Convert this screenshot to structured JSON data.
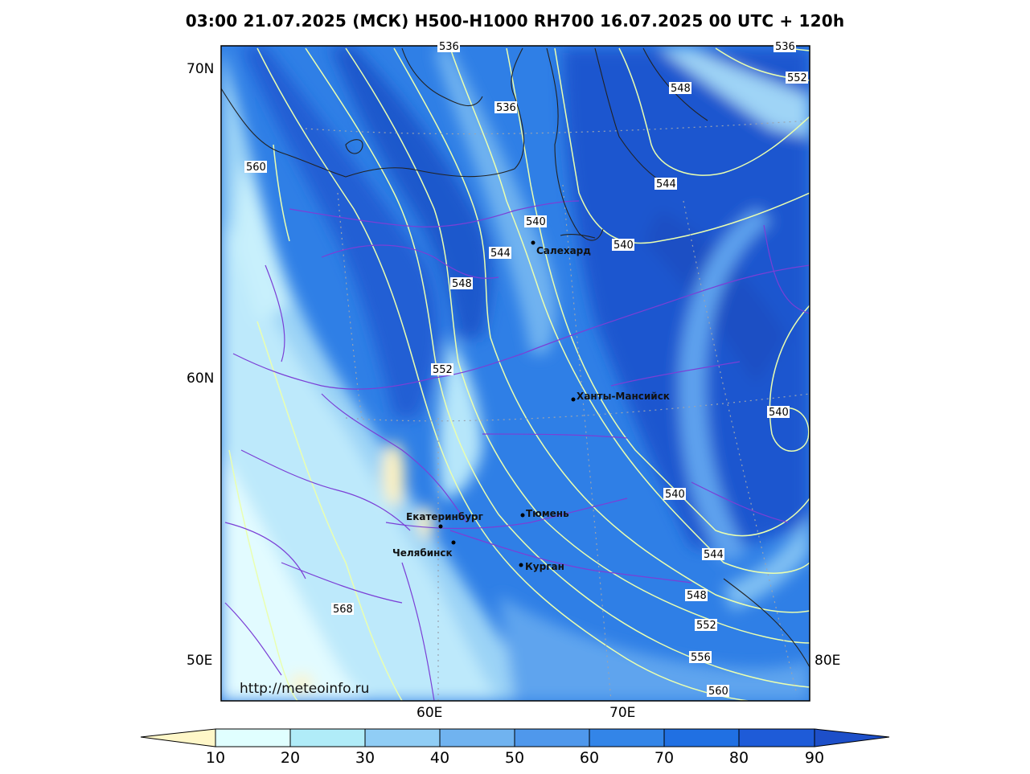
{
  "header": {
    "title": "03:00 21.07.2025 (МСК) H500-H1000 RH700 16.07.2025 00 UTC + 120h"
  },
  "axes": {
    "lat_labels": [
      "70N",
      "60N",
      "50E"
    ],
    "lon_labels": [
      "60E",
      "70E",
      "80E"
    ]
  },
  "contour_labels": [
    "536",
    "536",
    "552",
    "548",
    "536",
    "560",
    "544",
    "540",
    "544",
    "548",
    "540",
    "552",
    "540",
    "540",
    "544",
    "548",
    "552",
    "556",
    "560",
    "568"
  ],
  "cities": [
    "Салехард",
    "Ханты-Мансийск",
    "Екатеринбург",
    "Тюмень",
    "Челябинск",
    "Курган"
  ],
  "watermark": "http://meteoinfo.ru",
  "colorbar": {
    "ticks": [
      "10",
      "20",
      "30",
      "40",
      "50",
      "60",
      "70",
      "80",
      "90"
    ],
    "colors": [
      "#fff7c8",
      "#e0ffff",
      "#b0ecf8",
      "#90cdf5",
      "#70b3f0",
      "#4f98ec",
      "#3385e8",
      "#2070e3",
      "#1e5bd8",
      "#1d4fc9"
    ]
  },
  "colors": {
    "contour": "#eaffb0",
    "border": "#7b3fd6",
    "coast": "#222222"
  }
}
